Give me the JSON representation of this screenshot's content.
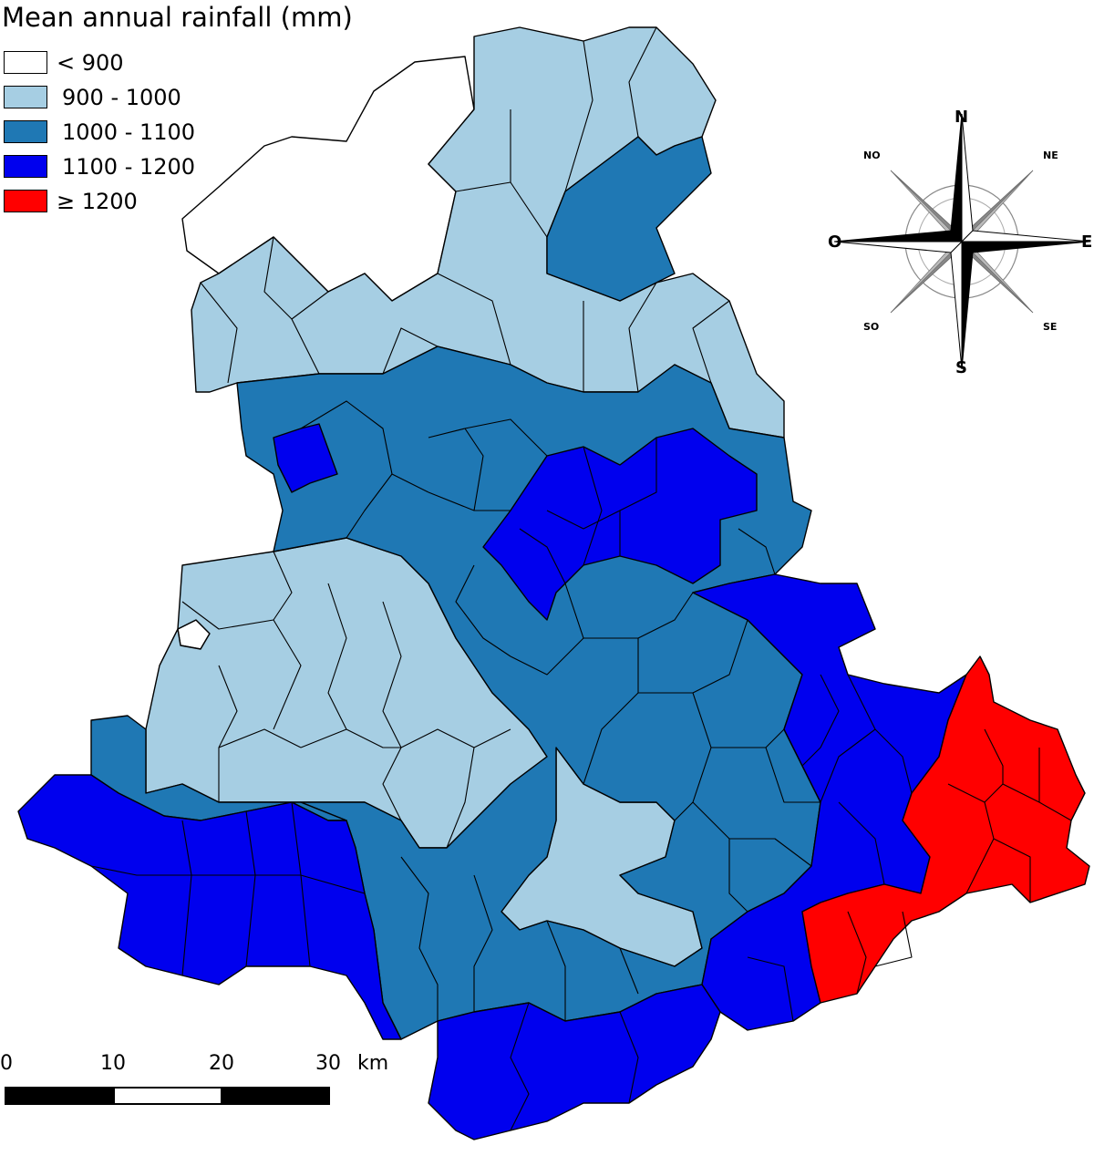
{
  "title": "Mean annual rainfall (mm)",
  "legend": [
    {
      "label": "< 900",
      "color": "#ffffff"
    },
    {
      "label": "900 - 1000",
      "color": "#a6cee3"
    },
    {
      "label": "1000 - 1100",
      "color": "#1f78b4"
    },
    {
      "label": "1100 - 1200",
      "color": "#0000ee"
    },
    {
      "label": "≥ 1200",
      "color": "#ff0000"
    }
  ],
  "compass": {
    "north": "N",
    "south": "S",
    "east": "E",
    "west": "O",
    "northeast": "NE",
    "northwest": "NO",
    "southeast": "SE",
    "southwest": "SO"
  },
  "scale_bar": {
    "ticks": [
      "0",
      "10",
      "20",
      "30"
    ],
    "unit": "km"
  }
}
